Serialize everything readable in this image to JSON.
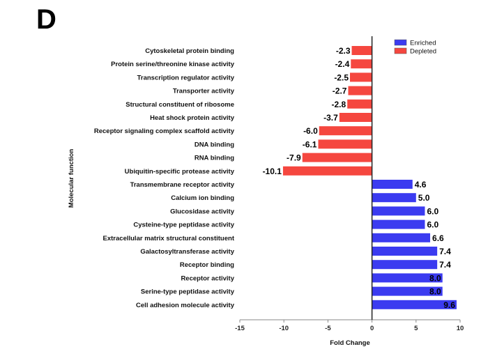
{
  "panel_label": "D",
  "chart_data": {
    "type": "bar",
    "orientation": "horizontal",
    "title": "",
    "xlabel": "Fold Change",
    "ylabel": "Molecular function",
    "xlim": [
      -15,
      10
    ],
    "xticks": [
      -15,
      -10,
      -5,
      0,
      5,
      10
    ],
    "grid": false,
    "legend_position": "top-right",
    "colors": {
      "Enriched": "#3b3bf0",
      "Depleted": "#f5473f"
    },
    "categories": [
      "Cytoskeletal protein binding",
      "Protein serine/threonine kinase activity",
      "Transcription regulator activity",
      "Transporter activity",
      "Structural constituent of ribosome",
      "Heat shock protein activity",
      "Receptor signaling complex scaffold activity",
      "DNA binding",
      "RNA binding",
      "Ubiquitin-specific protease activity",
      "Transmembrane receptor activity",
      "Calcium ion binding",
      "Glucosidase activity",
      "Cysteine-type peptidase activity",
      "Extracellular matrix structural constituent",
      "Galactosyltransferase activity",
      "Receptor binding",
      "Receptor activity",
      "Serine-type peptidase activity",
      "Cell adhesion molecule activity"
    ],
    "values": [
      -2.3,
      -2.4,
      -2.5,
      -2.7,
      -2.8,
      -3.7,
      -6.0,
      -6.1,
      -7.9,
      -10.1,
      4.6,
      5.0,
      6.0,
      6.0,
      6.6,
      7.4,
      7.4,
      8.0,
      8.0,
      9.6
    ],
    "labels": [
      "-2.3",
      "-2.4",
      "-2.5",
      "-2.7",
      "-2.8",
      "-3.7",
      "-6.0",
      "-6.1",
      "-7.9",
      "-10.1",
      "4.6",
      "5.0",
      "6.0",
      "6.0",
      "6.6",
      "7.4",
      "7.4",
      "8.0",
      "8.0",
      "9.6"
    ],
    "legend": [
      "Enriched",
      "Depleted"
    ]
  }
}
